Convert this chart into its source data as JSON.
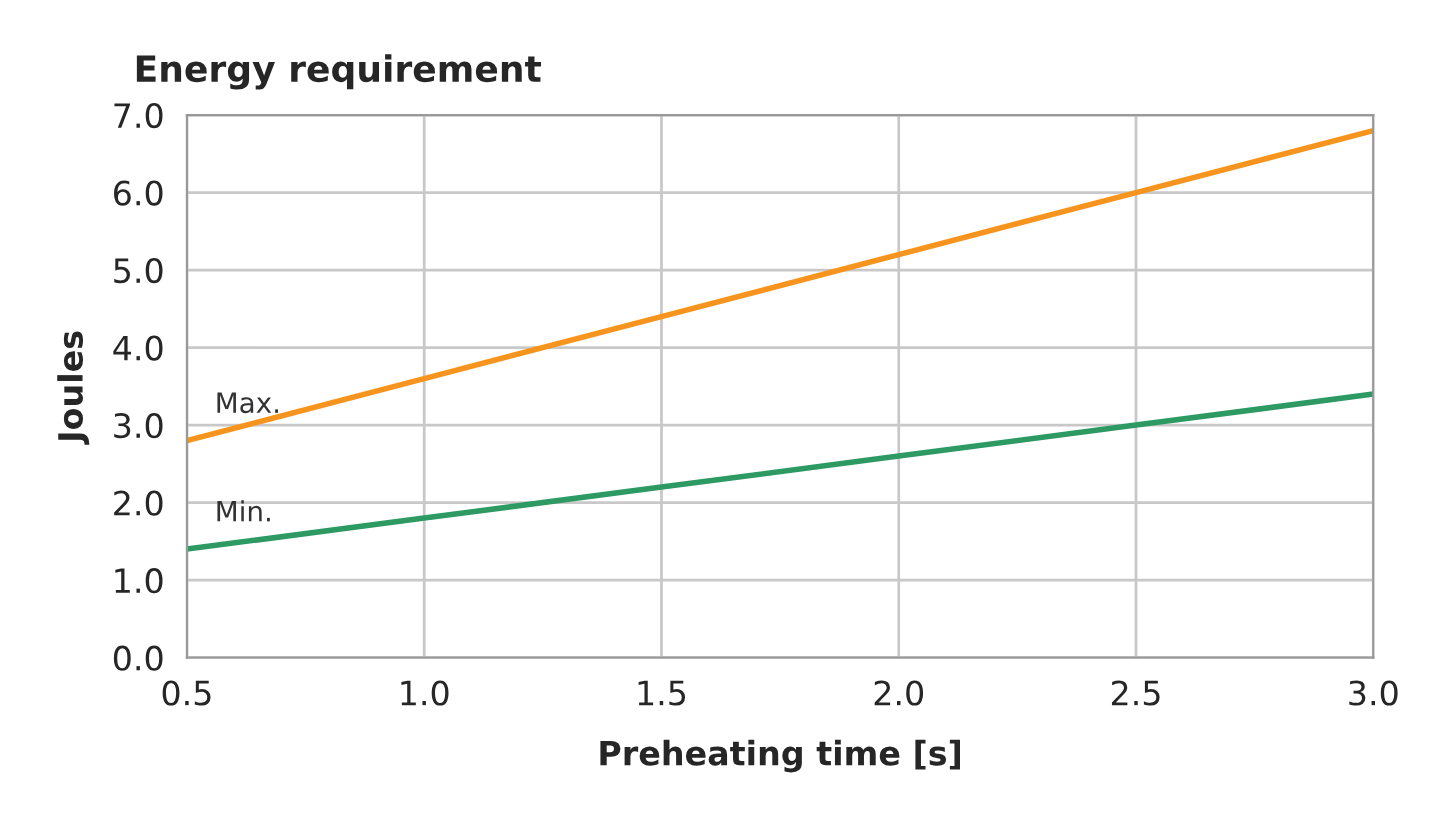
{
  "chart_data": {
    "type": "line",
    "title": "Energy requirement",
    "xlabel": "Preheating time [s]",
    "ylabel": "Joules",
    "x": [
      0.5,
      1.0,
      1.5,
      2.0,
      2.5,
      3.0
    ],
    "series": [
      {
        "name": "Max.",
        "color": "#f7941d",
        "values": [
          2.8,
          3.6,
          4.4,
          5.2,
          6.0,
          6.8
        ]
      },
      {
        "name": "Min.",
        "color": "#2e9a63",
        "values": [
          1.4,
          1.8,
          2.2,
          2.6,
          3.0,
          3.4
        ]
      }
    ],
    "xlim": [
      0.5,
      3.0
    ],
    "ylim": [
      0.0,
      7.0
    ],
    "xticks": [
      {
        "value": 0.5,
        "label": "0.5"
      },
      {
        "value": 1.0,
        "label": "1.0"
      },
      {
        "value": 1.5,
        "label": "1.5"
      },
      {
        "value": 2.0,
        "label": "2.0"
      },
      {
        "value": 2.5,
        "label": "2.5"
      },
      {
        "value": 3.0,
        "label": "3.0"
      }
    ],
    "yticks": [
      {
        "value": 0,
        "label": "0.0"
      },
      {
        "value": 1,
        "label": "1.0"
      },
      {
        "value": 2,
        "label": "2.0"
      },
      {
        "value": 3,
        "label": "3.0"
      },
      {
        "value": 4,
        "label": "4.0"
      },
      {
        "value": 5,
        "label": "5.0"
      },
      {
        "value": 6,
        "label": "6.0"
      },
      {
        "value": 7,
        "label": "7.0"
      }
    ],
    "grid": true,
    "legend": false,
    "marker": "none",
    "line_style": "solid"
  }
}
